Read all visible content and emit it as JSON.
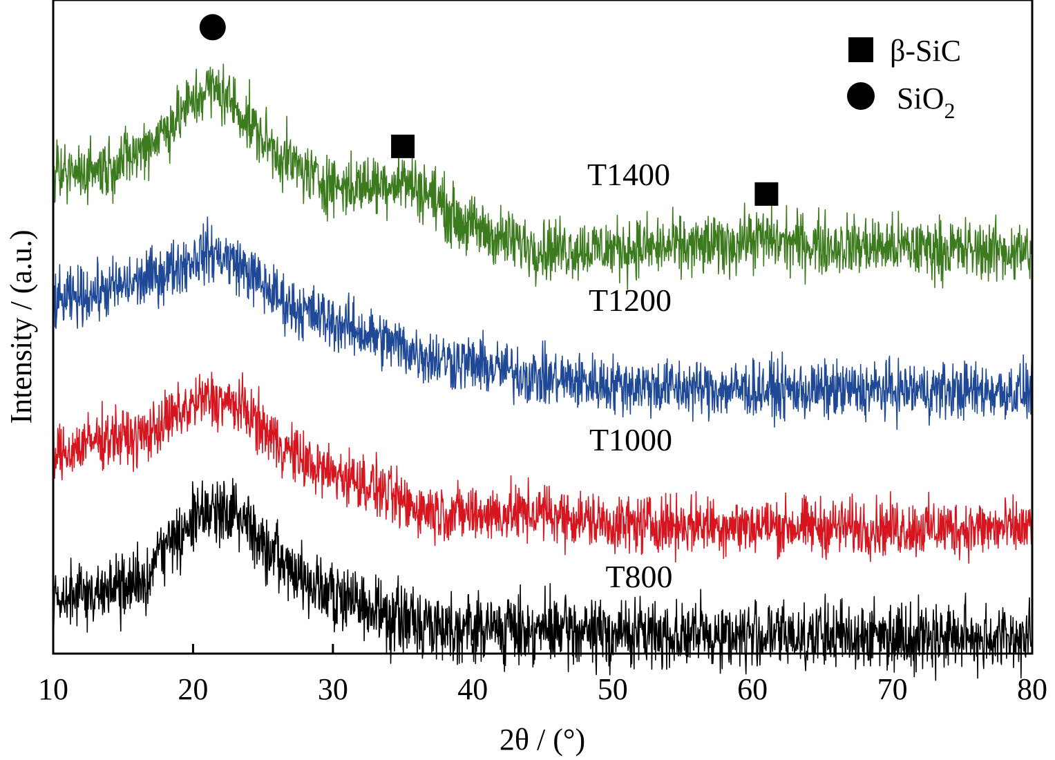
{
  "chart_data": {
    "type": "line",
    "xlabel": "2θ / (°)",
    "ylabel": "Intensity / (a.u.)",
    "xlim": [
      10,
      80
    ],
    "xticks": [
      10,
      20,
      30,
      40,
      50,
      60,
      70,
      80
    ],
    "xtick_labels": [
      "10",
      "20",
      "30",
      "40",
      "50",
      "60",
      "70",
      "80"
    ],
    "y_ticks_shown": false,
    "grid": false,
    "legend": {
      "placement": "top-right",
      "entries": [
        {
          "marker": "square",
          "label_main": "β-SiC",
          "label_sub": ""
        },
        {
          "marker": "circle",
          "label_main": "SiO",
          "label_sub": "2"
        }
      ]
    },
    "series": [
      {
        "name": "T800",
        "color": "#000000",
        "noise": 0.38,
        "points": [
          [
            10,
            0.66
          ],
          [
            12,
            0.86
          ],
          [
            14,
            0.9
          ],
          [
            16,
            1.0
          ],
          [
            18,
            1.55
          ],
          [
            20,
            1.95
          ],
          [
            21,
            2.1
          ],
          [
            22,
            2.15
          ],
          [
            23,
            2.1
          ],
          [
            24,
            1.9
          ],
          [
            25,
            1.55
          ],
          [
            27,
            1.2
          ],
          [
            29,
            0.95
          ],
          [
            31,
            0.75
          ],
          [
            33,
            0.62
          ],
          [
            35,
            0.5
          ],
          [
            37,
            0.44
          ],
          [
            40,
            0.38
          ],
          [
            45,
            0.35
          ],
          [
            50,
            0.3
          ],
          [
            55,
            0.28
          ],
          [
            60,
            0.27
          ],
          [
            65,
            0.26
          ],
          [
            70,
            0.28
          ],
          [
            75,
            0.24
          ],
          [
            80,
            0.24
          ]
        ]
      },
      {
        "name": "T1000",
        "color": "#d7151f",
        "noise": 0.32,
        "points": [
          [
            10,
            2.9
          ],
          [
            12,
            3.05
          ],
          [
            14,
            3.2
          ],
          [
            16,
            3.15
          ],
          [
            18,
            3.4
          ],
          [
            20,
            3.65
          ],
          [
            21,
            3.75
          ],
          [
            22,
            3.7
          ],
          [
            23,
            3.65
          ],
          [
            24,
            3.55
          ],
          [
            25,
            3.3
          ],
          [
            27,
            2.95
          ],
          [
            29,
            2.7
          ],
          [
            31,
            2.6
          ],
          [
            33,
            2.45
          ],
          [
            35,
            2.2
          ],
          [
            37,
            2.1
          ],
          [
            40,
            2.05
          ],
          [
            45,
            2.07
          ],
          [
            50,
            1.9
          ],
          [
            55,
            1.9
          ],
          [
            60,
            1.88
          ],
          [
            65,
            1.86
          ],
          [
            70,
            1.85
          ],
          [
            75,
            1.84
          ],
          [
            80,
            1.83
          ]
        ]
      },
      {
        "name": "T1200",
        "color": "#1f4897",
        "noise": 0.32,
        "points": [
          [
            10,
            5.15
          ],
          [
            12,
            5.25
          ],
          [
            14,
            5.35
          ],
          [
            16,
            5.45
          ],
          [
            18,
            5.6
          ],
          [
            20,
            5.8
          ],
          [
            21,
            5.9
          ],
          [
            22,
            5.85
          ],
          [
            23,
            5.75
          ],
          [
            24,
            5.6
          ],
          [
            25,
            5.4
          ],
          [
            27,
            5.1
          ],
          [
            29,
            4.95
          ],
          [
            31,
            4.8
          ],
          [
            33,
            4.65
          ],
          [
            35,
            4.5
          ],
          [
            37,
            4.35
          ],
          [
            40,
            4.25
          ],
          [
            45,
            4.05
          ],
          [
            50,
            3.95
          ],
          [
            55,
            3.9
          ],
          [
            60,
            3.88
          ],
          [
            65,
            3.86
          ],
          [
            70,
            3.87
          ],
          [
            75,
            3.86
          ],
          [
            80,
            3.85
          ]
        ]
      },
      {
        "name": "T1400",
        "color": "#3c7a1e",
        "noise": 0.34,
        "points": [
          [
            10,
            6.95
          ],
          [
            12,
            7.1
          ],
          [
            14,
            7.15
          ],
          [
            16,
            7.35
          ],
          [
            18,
            7.7
          ],
          [
            20,
            8.1
          ],
          [
            21,
            8.3
          ],
          [
            22,
            8.25
          ],
          [
            23,
            8.05
          ],
          [
            24,
            7.8
          ],
          [
            25,
            7.55
          ],
          [
            27,
            7.2
          ],
          [
            29,
            6.95
          ],
          [
            31,
            6.85
          ],
          [
            33,
            6.9
          ],
          [
            35,
            6.95
          ],
          [
            37,
            6.75
          ],
          [
            39,
            6.35
          ],
          [
            42,
            6.1
          ],
          [
            45,
            5.95
          ],
          [
            50,
            5.95
          ],
          [
            55,
            5.97
          ],
          [
            58,
            6.0
          ],
          [
            60,
            6.1
          ],
          [
            62,
            6.05
          ],
          [
            65,
            6.0
          ],
          [
            70,
            5.97
          ],
          [
            75,
            5.93
          ],
          [
            80,
            5.9
          ]
        ]
      }
    ],
    "peak_markers": [
      {
        "shape": "circle",
        "x": 21.4,
        "y": 9.2
      },
      {
        "shape": "square",
        "x": 35,
        "y": 7.45
      },
      {
        "shape": "square",
        "x": 61,
        "y": 6.75
      }
    ]
  }
}
